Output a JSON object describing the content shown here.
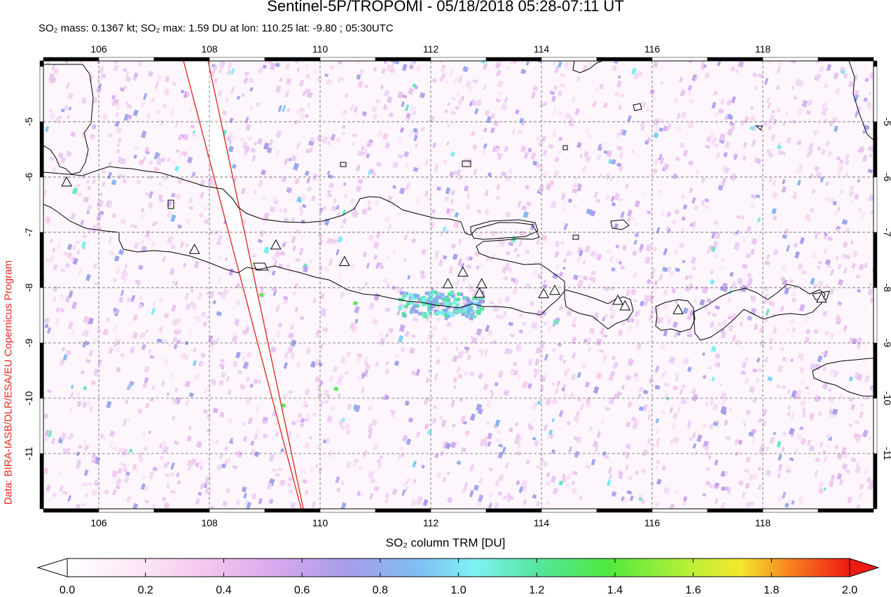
{
  "header": {
    "title": "Sentinel-5P/TROPOMI - 05/18/2018 05:28-07:11 UT",
    "subtitle": "SO₂ mass: 0.1367 kt; SO₂ max: 1.59 DU at lon: 110.25 lat: -9.80 ; 05:30UTC"
  },
  "credit": "Data: BIRA-IASB/DLR/ESA/EU Copernicus Program",
  "map": {
    "lon_range": [
      105,
      120
    ],
    "lat_range": [
      -12,
      -3.9
    ],
    "lon_ticks": [
      "106",
      "108",
      "110",
      "112",
      "114",
      "116",
      "118"
    ],
    "lat_ticks": [
      "-5",
      "-6",
      "-7",
      "-8",
      "-9",
      "-10",
      "-11"
    ],
    "grid": "dashed",
    "max_location": {
      "lon": 110.25,
      "lat": -9.8,
      "value_du": 1.59
    },
    "volcano_markers": [
      {
        "lon": 105.42,
        "lat": -6.1
      },
      {
        "lon": 107.73,
        "lat": -7.32
      },
      {
        "lon": 109.2,
        "lat": -7.24
      },
      {
        "lon": 110.44,
        "lat": -7.54
      },
      {
        "lon": 112.31,
        "lat": -7.94
      },
      {
        "lon": 112.58,
        "lat": -7.73
      },
      {
        "lon": 112.92,
        "lat": -7.94
      },
      {
        "lon": 112.88,
        "lat": -8.11
      },
      {
        "lon": 114.04,
        "lat": -8.12
      },
      {
        "lon": 114.24,
        "lat": -8.06
      },
      {
        "lon": 115.38,
        "lat": -8.24
      },
      {
        "lon": 115.51,
        "lat": -8.34
      },
      {
        "lon": 116.47,
        "lat": -8.41
      },
      {
        "lon": 119.06,
        "lat": -8.2
      }
    ]
  },
  "colorbar": {
    "title": "SO₂ column TRM [DU]",
    "ticks": [
      "0.0",
      "0.2",
      "0.4",
      "0.6",
      "0.8",
      "1.0",
      "1.2",
      "1.4",
      "1.6",
      "1.8",
      "2.0"
    ],
    "stops": [
      "#ffffff",
      "#f9d4f0",
      "#dca9ee",
      "#a09ce9",
      "#7fb2f0",
      "#7ef2f2",
      "#57e7a8",
      "#4fe93f",
      "#b5ef39",
      "#f5e82d",
      "#f8781e",
      "#ee1a14"
    ]
  }
}
